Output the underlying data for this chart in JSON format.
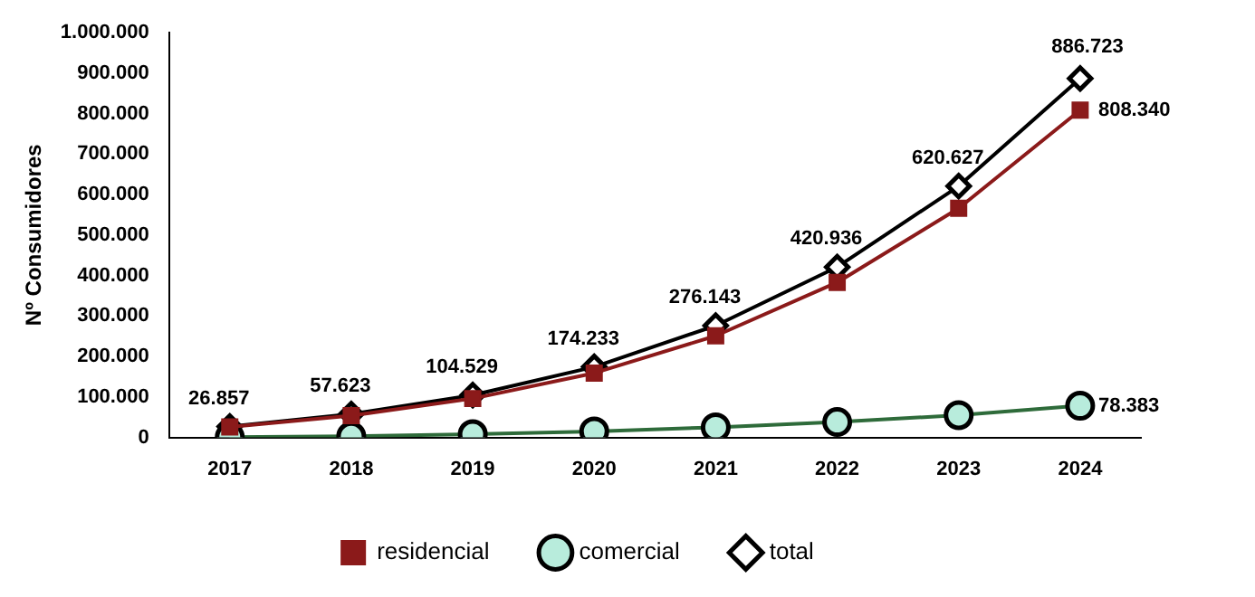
{
  "chart_data": {
    "type": "line",
    "ylabel": "Nº Consumidores",
    "categories": [
      "2017",
      "2018",
      "2019",
      "2020",
      "2021",
      "2022",
      "2023",
      "2024"
    ],
    "ylim": [
      0,
      1000000
    ],
    "yticks": [
      {
        "value": 0,
        "label": "0"
      },
      {
        "value": 100000,
        "label": "100.000"
      },
      {
        "value": 200000,
        "label": "200.000"
      },
      {
        "value": 300000,
        "label": "300.000"
      },
      {
        "value": 400000,
        "label": "400.000"
      },
      {
        "value": 500000,
        "label": "500.000"
      },
      {
        "value": 600000,
        "label": "600.000"
      },
      {
        "value": 700000,
        "label": "700.000"
      },
      {
        "value": 800000,
        "label": "800.000"
      },
      {
        "value": 900000,
        "label": "900.000"
      },
      {
        "value": 1000000,
        "label": "1.000.000"
      }
    ],
    "grid": false,
    "legend": "bottom",
    "series": [
      {
        "name": "residencial",
        "color": "#8b1a1a",
        "marker": "square",
        "values": [
          26000,
          54000,
          96000,
          159000,
          251000,
          383000,
          566000,
          808340
        ],
        "value_labels": [
          null,
          null,
          null,
          null,
          null,
          null,
          null,
          "808.340"
        ]
      },
      {
        "name": "comercial",
        "color": "#2e6b3a",
        "marker": "circle",
        "values": [
          1000,
          3000,
          8000,
          15000,
          25000,
          38000,
          55000,
          78383
        ],
        "value_labels": [
          null,
          null,
          null,
          null,
          null,
          null,
          null,
          "78.383"
        ]
      },
      {
        "name": "total",
        "color": "#000000",
        "marker": "diamond",
        "values": [
          26857,
          57623,
          104529,
          174233,
          276143,
          420936,
          620627,
          886723
        ],
        "value_labels": [
          "26.857",
          "57.623",
          "104.529",
          "174.233",
          "276.143",
          "420.936",
          "620.627",
          "886.723"
        ]
      }
    ]
  }
}
